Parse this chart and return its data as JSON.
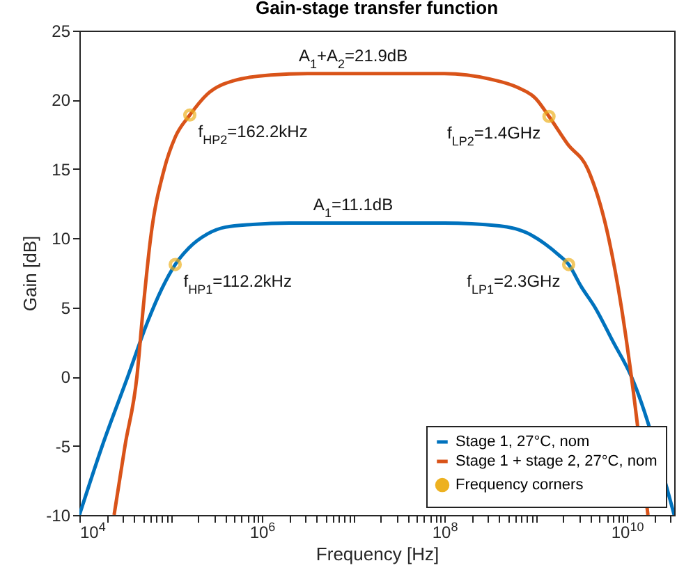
{
  "chart_data": {
    "type": "line",
    "title": "Gain-stage transfer function",
    "xlabel": "Frequency [Hz]",
    "ylabel": "Gain [dB]",
    "log": "x",
    "xlim": [
      10000,
      33000000000
    ],
    "ylim": [
      -10,
      25
    ],
    "xticks": [
      {
        "value": 10000,
        "label": "10$^{4}$"
      },
      {
        "value": 20000,
        "label": null
      },
      {
        "value": 30000,
        "label": null
      },
      {
        "value": 40000,
        "label": null
      },
      {
        "value": 50000,
        "label": null
      },
      {
        "value": 60000,
        "label": null
      },
      {
        "value": 70000,
        "label": null
      },
      {
        "value": 80000,
        "label": null
      },
      {
        "value": 90000,
        "label": null
      },
      {
        "value": 100000,
        "label": null
      },
      {
        "value": 200000,
        "label": null
      },
      {
        "value": 300000,
        "label": null
      },
      {
        "value": 400000,
        "label": null
      },
      {
        "value": 500000,
        "label": null
      },
      {
        "value": 600000,
        "label": null
      },
      {
        "value": 700000,
        "label": null
      },
      {
        "value": 800000,
        "label": null
      },
      {
        "value": 900000,
        "label": null
      },
      {
        "value": 1000000,
        "label": "10$^{6}$"
      },
      {
        "value": 2000000,
        "label": null
      },
      {
        "value": 3000000,
        "label": null
      },
      {
        "value": 4000000,
        "label": null
      },
      {
        "value": 5000000,
        "label": null
      },
      {
        "value": 6000000,
        "label": null
      },
      {
        "value": 7000000,
        "label": null
      },
      {
        "value": 8000000,
        "label": null
      },
      {
        "value": 9000000,
        "label": null
      },
      {
        "value": 10000000,
        "label": null
      },
      {
        "value": 20000000,
        "label": null
      },
      {
        "value": 30000000,
        "label": null
      },
      {
        "value": 40000000,
        "label": null
      },
      {
        "value": 50000000,
        "label": null
      },
      {
        "value": 60000000,
        "label": null
      },
      {
        "value": 70000000,
        "label": null
      },
      {
        "value": 80000000,
        "label": null
      },
      {
        "value": 90000000,
        "label": null
      },
      {
        "value": 100000000,
        "label": "10$^{8}$"
      },
      {
        "value": 200000000,
        "label": null
      },
      {
        "value": 300000000,
        "label": null
      },
      {
        "value": 400000000,
        "label": null
      },
      {
        "value": 500000000,
        "label": null
      },
      {
        "value": 600000000,
        "label": null
      },
      {
        "value": 700000000,
        "label": null
      },
      {
        "value": 800000000,
        "label": null
      },
      {
        "value": 900000000,
        "label": null
      },
      {
        "value": 1000000000,
        "label": null
      },
      {
        "value": 2000000000,
        "label": null
      },
      {
        "value": 3000000000,
        "label": null
      },
      {
        "value": 4000000000,
        "label": null
      },
      {
        "value": 5000000000,
        "label": null
      },
      {
        "value": 6000000000,
        "label": null
      },
      {
        "value": 7000000000,
        "label": null
      },
      {
        "value": 8000000000,
        "label": null
      },
      {
        "value": 9000000000,
        "label": null
      },
      {
        "value": 10000000000,
        "label": "10$^{10}$"
      },
      {
        "value": 20000000000,
        "label": null
      },
      {
        "value": 30000000000,
        "label": null
      }
    ],
    "yticks": [
      -10,
      -5,
      0,
      5,
      10,
      15,
      20,
      25
    ],
    "grid": false,
    "legend": "bottom right",
    "series": [
      {
        "name": "Stage 1, 27°C, nom",
        "color": "#0072bd",
        "x": [
          10000,
          17800,
          33900,
          56200,
          79400,
          112200,
          158500,
          251200,
          398000,
          794000,
          2000000,
          10000000,
          100000000,
          398000000,
          794000000,
          1260000000,
          1780000000,
          2300000000,
          3160000000,
          4470000000,
          7080000000,
          11200000000,
          33000000000
        ],
        "values": [
          -10,
          -5,
          0,
          4,
          6.3,
          8.1,
          9.3,
          10.3,
          10.8,
          11.0,
          11.1,
          11.1,
          11.1,
          10.9,
          10.4,
          9.6,
          8.8,
          8.1,
          6.5,
          5,
          2.5,
          0,
          -10
        ]
      },
      {
        "name": "Stage 1 + stage 2, 27°C, nom",
        "color": "#d95319",
        "x": [
          24000,
          31600,
          42700,
          50100,
          60300,
          85100,
          112200,
          162200,
          251200,
          501000,
          1260000,
          3160000,
          100000000,
          316000000,
          631000000,
          1000000000,
          1400000000,
          2240000000,
          3720000000,
          6310000000,
          8710000000,
          11200000000,
          17000000000
        ],
        "values": [
          -10,
          -5,
          0,
          5,
          10,
          15,
          17.3,
          18.9,
          20.4,
          21.4,
          21.8,
          21.9,
          21.9,
          21.5,
          20.9,
          20.1,
          18.8,
          16.8,
          15,
          10,
          5,
          0,
          -10
        ]
      },
      {
        "name": "Frequency corners",
        "type": "scatter",
        "color": "#edb120",
        "marker": "circle",
        "x": [
          112200,
          2300000000,
          162200,
          1400000000
        ],
        "values": [
          8.1,
          8.1,
          18.9,
          18.8
        ]
      }
    ],
    "annotations": [
      {
        "text": "A$_{1}$+A$_{2}$=21.9dB",
        "x": 10000000,
        "y": 21.9
      },
      {
        "text": "f$_{HP2}$=162.2kHz",
        "x": 162200,
        "y": 18.9
      },
      {
        "text": "f$_{LP2}$=1.4GHz",
        "x": 1400000000,
        "y": 18.8
      },
      {
        "text": "A$_{1}$=11.1dB",
        "x": 10000000,
        "y": 11.1
      },
      {
        "text": "f$_{HP1}$=112.2kHz",
        "x": 112200,
        "y": 8.1
      },
      {
        "text": "f$_{LP1}$=2.3GHz",
        "x": 2300000000,
        "y": 8.1
      }
    ]
  }
}
